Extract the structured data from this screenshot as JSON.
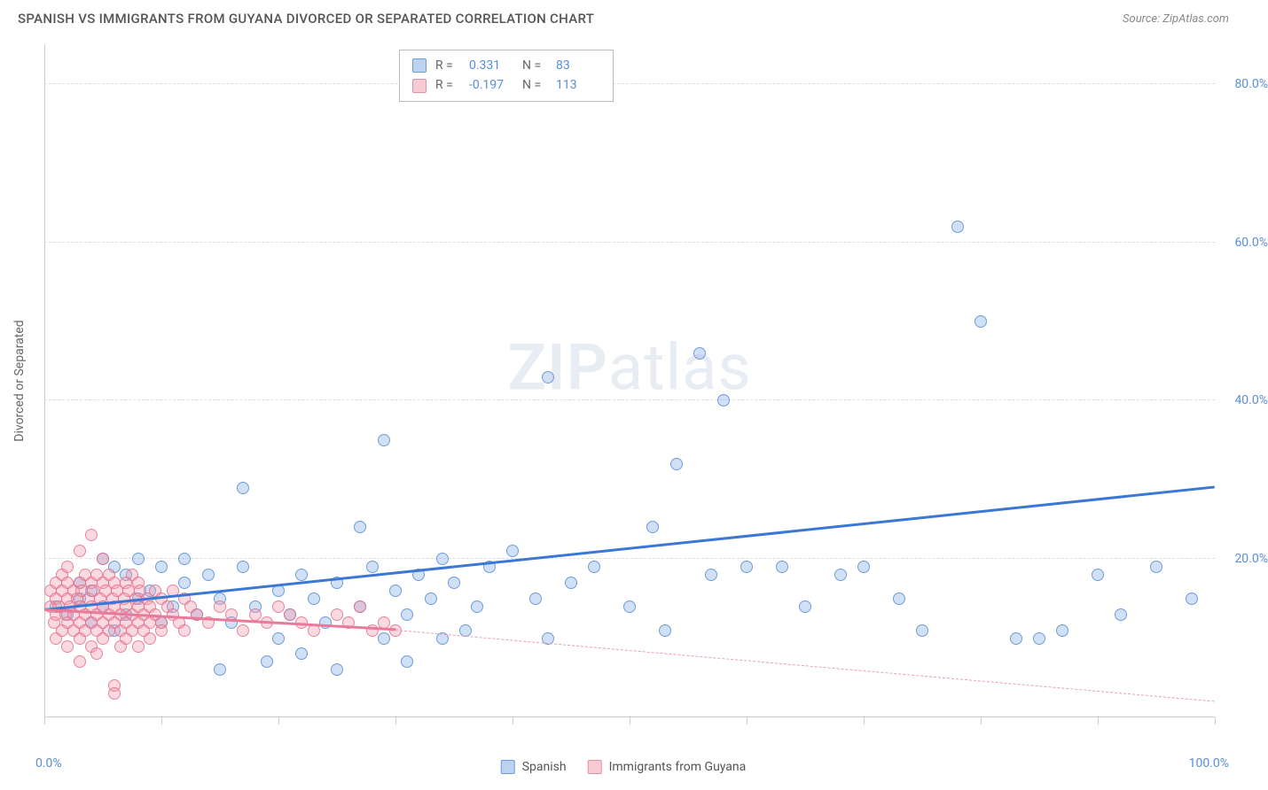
{
  "header": {
    "title": "SPANISH VS IMMIGRANTS FROM GUYANA DIVORCED OR SEPARATED CORRELATION CHART",
    "source": "Source: ZipAtlas.com"
  },
  "watermark": {
    "zip": "ZIP",
    "atlas": "atlas"
  },
  "chart": {
    "type": "scatter",
    "y_axis_label": "Divorced or Separated",
    "xlim": [
      0,
      100
    ],
    "ylim": [
      0,
      85
    ],
    "x_ticks": [
      0,
      10,
      20,
      30,
      40,
      50,
      60,
      70,
      80,
      90,
      100
    ],
    "x_tick_labels": {
      "0": "0.0%",
      "100": "100.0%"
    },
    "y_grid": [
      20,
      40,
      60,
      80
    ],
    "y_tick_labels": {
      "20": "20.0%",
      "40": "40.0%",
      "60": "60.0%",
      "80": "80.0%"
    },
    "background_color": "#ffffff",
    "grid_color": "#dddddd",
    "series": [
      {
        "name": "Spanish",
        "color_fill": "rgba(120,165,225,0.35)",
        "color_stroke": "#5a8cd2",
        "r_value": "0.331",
        "n_value": "83",
        "trend": {
          "x1": 0,
          "y1": 13.5,
          "x2": 100,
          "y2": 29,
          "color": "#3b78d6"
        },
        "points": [
          [
            1,
            14
          ],
          [
            2,
            13
          ],
          [
            3,
            15
          ],
          [
            3,
            17
          ],
          [
            4,
            12
          ],
          [
            4,
            16
          ],
          [
            5,
            14
          ],
          [
            5,
            20
          ],
          [
            6,
            11
          ],
          [
            6,
            19
          ],
          [
            7,
            13
          ],
          [
            7,
            18
          ],
          [
            8,
            15
          ],
          [
            8,
            20
          ],
          [
            9,
            16
          ],
          [
            10,
            12
          ],
          [
            10,
            19
          ],
          [
            11,
            14
          ],
          [
            12,
            17
          ],
          [
            12,
            20
          ],
          [
            13,
            13
          ],
          [
            14,
            18
          ],
          [
            15,
            15
          ],
          [
            15,
            6
          ],
          [
            16,
            12
          ],
          [
            17,
            19
          ],
          [
            17,
            29
          ],
          [
            18,
            14
          ],
          [
            19,
            7
          ],
          [
            20,
            16
          ],
          [
            20,
            10
          ],
          [
            21,
            13
          ],
          [
            22,
            18
          ],
          [
            22,
            8
          ],
          [
            23,
            15
          ],
          [
            24,
            12
          ],
          [
            25,
            17
          ],
          [
            25,
            6
          ],
          [
            27,
            14
          ],
          [
            27,
            24
          ],
          [
            28,
            19
          ],
          [
            29,
            10
          ],
          [
            29,
            35
          ],
          [
            30,
            16
          ],
          [
            31,
            13
          ],
          [
            31,
            7
          ],
          [
            32,
            18
          ],
          [
            33,
            15
          ],
          [
            34,
            20
          ],
          [
            34,
            10
          ],
          [
            35,
            17
          ],
          [
            36,
            11
          ],
          [
            37,
            14
          ],
          [
            38,
            19
          ],
          [
            40,
            21
          ],
          [
            42,
            15
          ],
          [
            43,
            10
          ],
          [
            43,
            43
          ],
          [
            45,
            17
          ],
          [
            47,
            19
          ],
          [
            50,
            14
          ],
          [
            52,
            24
          ],
          [
            53,
            11
          ],
          [
            54,
            32
          ],
          [
            56,
            46
          ],
          [
            57,
            18
          ],
          [
            58,
            40
          ],
          [
            60,
            19
          ],
          [
            63,
            19
          ],
          [
            65,
            14
          ],
          [
            68,
            18
          ],
          [
            70,
            19
          ],
          [
            73,
            15
          ],
          [
            75,
            11
          ],
          [
            78,
            62
          ],
          [
            80,
            50
          ],
          [
            83,
            10
          ],
          [
            85,
            10
          ],
          [
            87,
            11
          ],
          [
            90,
            18
          ],
          [
            92,
            13
          ],
          [
            95,
            19
          ],
          [
            98,
            15
          ]
        ]
      },
      {
        "name": "Immigrants from Guyana",
        "color_fill": "rgba(240,150,170,0.35)",
        "color_stroke": "#e66e8c",
        "r_value": "-0.197",
        "n_value": "113",
        "trend_solid": {
          "x1": 0,
          "y1": 13.5,
          "x2": 30,
          "y2": 11,
          "color": "#e87b9a"
        },
        "trend_dash": {
          "x1": 30,
          "y1": 11,
          "x2": 100,
          "y2": 2,
          "color": "#e8a0b5"
        },
        "points": [
          [
            0.5,
            14
          ],
          [
            0.5,
            16
          ],
          [
            0.8,
            12
          ],
          [
            1,
            13
          ],
          [
            1,
            15
          ],
          [
            1,
            17
          ],
          [
            1,
            10
          ],
          [
            1.2,
            14
          ],
          [
            1.5,
            11
          ],
          [
            1.5,
            16
          ],
          [
            1.5,
            18
          ],
          [
            1.8,
            13
          ],
          [
            2,
            12
          ],
          [
            2,
            15
          ],
          [
            2,
            17
          ],
          [
            2,
            9
          ],
          [
            2,
            19
          ],
          [
            2.2,
            14
          ],
          [
            2.5,
            11
          ],
          [
            2.5,
            16
          ],
          [
            2.5,
            13
          ],
          [
            2.8,
            15
          ],
          [
            3,
            10
          ],
          [
            3,
            14
          ],
          [
            3,
            17
          ],
          [
            3,
            12
          ],
          [
            3,
            21
          ],
          [
            3.2,
            16
          ],
          [
            3.5,
            13
          ],
          [
            3.5,
            18
          ],
          [
            3.5,
            11
          ],
          [
            3.8,
            15
          ],
          [
            4,
            12
          ],
          [
            4,
            14
          ],
          [
            4,
            17
          ],
          [
            4,
            9
          ],
          [
            4,
            23
          ],
          [
            4.2,
            16
          ],
          [
            4.5,
            13
          ],
          [
            4.5,
            11
          ],
          [
            4.5,
            18
          ],
          [
            4.8,
            15
          ],
          [
            5,
            12
          ],
          [
            5,
            14
          ],
          [
            5,
            17
          ],
          [
            5,
            10
          ],
          [
            5,
            20
          ],
          [
            5.2,
            16
          ],
          [
            5.5,
            13
          ],
          [
            5.5,
            11
          ],
          [
            5.5,
            18
          ],
          [
            5.8,
            15
          ],
          [
            6,
            12
          ],
          [
            6,
            14
          ],
          [
            6,
            17
          ],
          [
            6,
            4
          ],
          [
            6.2,
            16
          ],
          [
            6.5,
            13
          ],
          [
            6.5,
            11
          ],
          [
            6.5,
            9
          ],
          [
            6.8,
            15
          ],
          [
            7,
            12
          ],
          [
            7,
            14
          ],
          [
            7,
            17
          ],
          [
            7,
            10
          ],
          [
            7.2,
            16
          ],
          [
            7.5,
            13
          ],
          [
            7.5,
            11
          ],
          [
            7.5,
            18
          ],
          [
            7.8,
            15
          ],
          [
            8,
            12
          ],
          [
            8,
            14
          ],
          [
            8,
            9
          ],
          [
            8,
            17
          ],
          [
            8.2,
            16
          ],
          [
            8.5,
            13
          ],
          [
            8.5,
            11
          ],
          [
            8.8,
            15
          ],
          [
            9,
            12
          ],
          [
            9,
            14
          ],
          [
            9,
            10
          ],
          [
            9.5,
            13
          ],
          [
            9.5,
            16
          ],
          [
            10,
            12
          ],
          [
            10,
            15
          ],
          [
            10,
            11
          ],
          [
            10.5,
            14
          ],
          [
            11,
            13
          ],
          [
            11,
            16
          ],
          [
            11.5,
            12
          ],
          [
            12,
            15
          ],
          [
            12,
            11
          ],
          [
            12.5,
            14
          ],
          [
            13,
            13
          ],
          [
            14,
            12
          ],
          [
            15,
            14
          ],
          [
            16,
            13
          ],
          [
            17,
            11
          ],
          [
            18,
            13
          ],
          [
            19,
            12
          ],
          [
            20,
            14
          ],
          [
            21,
            13
          ],
          [
            22,
            12
          ],
          [
            23,
            11
          ],
          [
            25,
            13
          ],
          [
            26,
            12
          ],
          [
            27,
            14
          ],
          [
            28,
            11
          ],
          [
            29,
            12
          ],
          [
            30,
            11
          ],
          [
            6,
            3
          ],
          [
            4.5,
            8
          ],
          [
            3,
            7
          ]
        ]
      }
    ]
  },
  "stats_legend": {
    "r_label": "R =",
    "n_label": "N ="
  },
  "bottom_legend": {
    "items": [
      "Spanish",
      "Immigrants from Guyana"
    ]
  }
}
